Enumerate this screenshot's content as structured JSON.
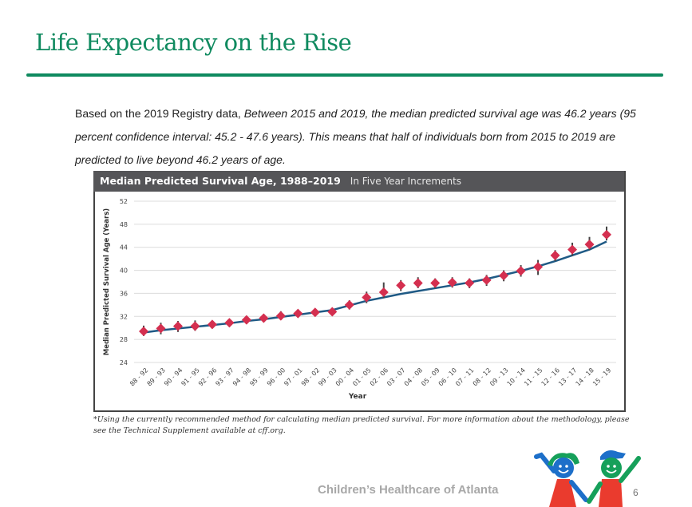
{
  "slide": {
    "title": "Life Expectancy on the Rise",
    "intro_plain": "Based on the 2019 Registry data, ",
    "intro_italic": "Between 2015 and 2019, the median predicted survival age was 46.2 years (95 percent confidence interval: 45.2 - 47.6 years). This means that half of individuals born from 2015 to 2019 are predicted to live beyond 46.2 years of age.",
    "footnote": "*Using the currently recommended method for calculating median predicted survival. For more information about the methodology, please see the Technical Supplement available at cff.org.",
    "brand": "Children’s Healthcare of Atlanta",
    "page_number": "6",
    "colors": {
      "brand_green": "#0f8a5f",
      "header_bar": "#555558",
      "marker": "#d42f4f",
      "trend_line": "#1f5a85",
      "error_bar": "#444444"
    }
  },
  "chart_data": {
    "type": "scatter",
    "title": "Median Predicted Survival Age, 1988–2019",
    "subtitle": "In Five Year Increments",
    "xlabel": "Year",
    "ylabel": "Median Predicted Survival Age (Years)",
    "ylim": [
      24,
      52
    ],
    "yticks": [
      24,
      28,
      32,
      36,
      40,
      44,
      48,
      52
    ],
    "grid": true,
    "categories": [
      "88 - 92",
      "89 - 93",
      "90 - 94",
      "91 - 95",
      "92 - 96",
      "93 - 97",
      "94 - 98",
      "95 - 99",
      "96 - 00",
      "97 - 01",
      "98 - 02",
      "99 - 03",
      "00 - 04",
      "01 - 05",
      "02 - 06",
      "03 - 07",
      "04 - 08",
      "05 - 09",
      "06 - 10",
      "07 - 11",
      "08 - 12",
      "09 - 13",
      "10 - 14",
      "11 - 15",
      "12 - 16",
      "13 - 17",
      "14 - 18",
      "15 - 19"
    ],
    "series": [
      {
        "name": "Median predicted survival age",
        "values": [
          29.4,
          29.9,
          30.3,
          30.3,
          30.6,
          30.9,
          31.4,
          31.7,
          32.1,
          32.5,
          32.7,
          32.8,
          34.0,
          35.3,
          36.2,
          37.4,
          37.8,
          37.8,
          37.9,
          37.8,
          38.3,
          39.1,
          39.9,
          40.6,
          42.6,
          43.6,
          44.5,
          46.2
        ],
        "ci_low": [
          28.6,
          28.9,
          29.3,
          29.5,
          29.9,
          30.2,
          30.7,
          31.0,
          31.4,
          31.8,
          32.1,
          32.3,
          33.2,
          34.3,
          35.2,
          36.4,
          36.9,
          36.9,
          37.0,
          36.9,
          37.3,
          38.1,
          38.9,
          39.2,
          41.6,
          42.5,
          43.5,
          45.2
        ],
        "ci_high": [
          30.4,
          30.9,
          31.2,
          31.3,
          31.2,
          31.5,
          32.1,
          32.4,
          32.9,
          33.2,
          33.3,
          33.3,
          34.8,
          36.3,
          37.9,
          38.3,
          38.8,
          38.6,
          38.8,
          38.6,
          39.2,
          40.0,
          40.9,
          41.8,
          43.5,
          44.8,
          45.8,
          47.6
        ]
      },
      {
        "name": "Trend",
        "type": "line",
        "values": [
          29.2,
          29.6,
          29.9,
          30.2,
          30.5,
          30.8,
          31.2,
          31.5,
          31.9,
          32.3,
          32.7,
          33.1,
          33.9,
          34.7,
          35.3,
          35.9,
          36.4,
          36.9,
          37.4,
          37.9,
          38.5,
          39.2,
          39.9,
          40.7,
          41.6,
          42.6,
          43.6,
          45.0
        ]
      }
    ]
  }
}
